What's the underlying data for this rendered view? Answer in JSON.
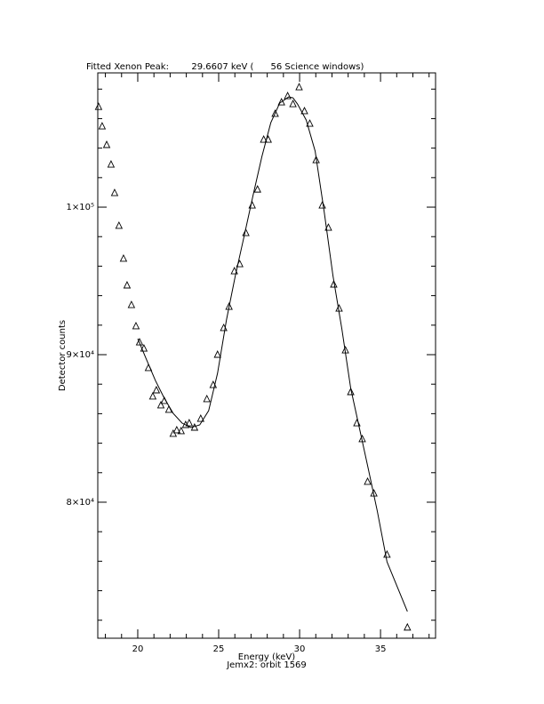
{
  "chart_data": {
    "type": "scatter",
    "title": "Fitted Xenon Peak:        29.6607 keV (      56 Science windows)",
    "x_label": "Energy (keV)",
    "subtitle": "Jemx2: orbit 1569",
    "y_label": "Detector counts",
    "xlim": [
      17.53,
      38.4
    ],
    "ylim": [
      70780,
      109100
    ],
    "xticks": [
      20,
      25,
      30,
      35
    ],
    "xminorticks": [
      18,
      19,
      21,
      22,
      23,
      24,
      26,
      27,
      28,
      29,
      31,
      32,
      33,
      34,
      36,
      37,
      38
    ],
    "yticks": [
      {
        "value": 80000,
        "label": "8×10⁴"
      },
      {
        "value": 90000,
        "label": "9×10⁴"
      },
      {
        "value": 100000,
        "label": "1×10⁵"
      }
    ],
    "yminorticks": [
      72000,
      74000,
      76000,
      78000,
      82000,
      84000,
      86000,
      88000,
      92000,
      94000,
      96000,
      98000,
      102000,
      104000,
      106000,
      108000
    ],
    "color": "#000000",
    "series": [
      {
        "type": "scatter",
        "x": [
          17.58,
          17.8,
          18.08,
          18.35,
          18.57,
          18.84,
          19.12,
          19.34,
          19.61,
          19.89,
          20.11,
          20.38,
          20.66,
          20.93,
          21.15,
          21.43,
          21.64,
          21.92,
          22.19,
          22.41,
          22.68,
          22.96,
          23.18,
          23.51,
          23.89,
          24.27,
          24.66,
          24.93,
          25.31,
          25.64,
          25.97,
          26.3,
          26.68,
          27.07,
          27.4,
          27.78,
          28.06,
          28.49,
          28.88,
          29.26,
          29.59,
          29.97,
          30.3,
          30.63,
          31.02,
          31.4,
          31.78,
          32.11,
          32.44,
          32.83,
          33.16,
          33.54,
          33.87,
          34.2,
          34.59,
          35.4,
          36.66
        ],
        "values": [
          106800,
          105480,
          104220,
          102890,
          100960,
          98740,
          96510,
          94700,
          93370,
          91930,
          90840,
          90420,
          89100,
          87170,
          87590,
          86570,
          86870,
          86270,
          84640,
          84880,
          84820,
          85240,
          85360,
          85060,
          85660,
          86990,
          87950,
          90000,
          91810,
          93250,
          95660,
          96140,
          98250,
          100120,
          101200,
          104580,
          104580,
          106330,
          107110,
          107530,
          106990,
          108130,
          106510,
          105660,
          103190,
          100120,
          98610,
          94760,
          93130,
          90300,
          87470,
          85360,
          84280,
          81390,
          80600,
          76450,
          71510
        ]
      },
      {
        "type": "line",
        "x": [
          20.0,
          20.55,
          21.09,
          21.64,
          22.19,
          22.74,
          23.29,
          23.83,
          24.38,
          24.93,
          25.48,
          26.03,
          26.58,
          27.12,
          27.67,
          28.22,
          28.77,
          29.32,
          29.59,
          29.87,
          30.41,
          30.96,
          31.51,
          32.06,
          32.61,
          33.16,
          33.7,
          34.25,
          34.8,
          35.4,
          36.66
        ],
        "values": [
          91080,
          89640,
          88250,
          87050,
          86020,
          85360,
          85060,
          85240,
          86200,
          88740,
          92350,
          95360,
          98070,
          100780,
          103430,
          105720,
          107050,
          107470,
          107410,
          106990,
          105900,
          103800,
          99760,
          95360,
          91750,
          87710,
          85000,
          82230,
          79400,
          75960,
          72590
        ]
      }
    ]
  }
}
